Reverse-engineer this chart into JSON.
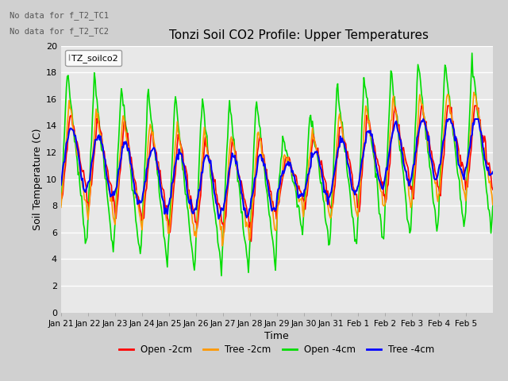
{
  "title": "Tonzi Soil CO2 Profile: Upper Temperatures",
  "xlabel": "Time",
  "ylabel": "Soil Temperature (C)",
  "ylim": [
    0,
    20
  ],
  "yticks": [
    0,
    2,
    4,
    6,
    8,
    10,
    12,
    14,
    16,
    18,
    20
  ],
  "legend_labels": [
    "Open -2cm",
    "Tree -2cm",
    "Open -4cm",
    "Tree -4cm"
  ],
  "legend_colors": [
    "#ff0000",
    "#ff9900",
    "#00dd00",
    "#0000ff"
  ],
  "text_annotations": [
    "No data for f_T2_TC1",
    "No data for f_T2_TC2"
  ],
  "legend_box_label": "TZ_soilco2",
  "plot_bg_color": "#e8e8e8",
  "fig_bg_color": "#d0d0d0",
  "grid_color": "#ffffff",
  "num_points": 480
}
